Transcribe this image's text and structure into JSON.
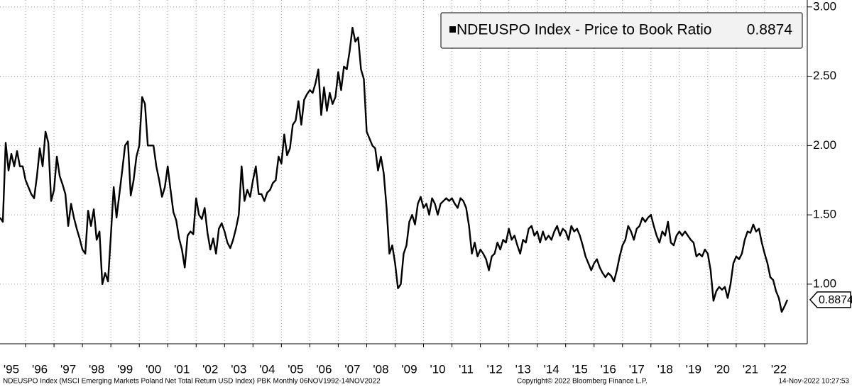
{
  "chart_data": {
    "type": "line",
    "series": [
      {
        "name": "NDEUSPO Index - Price to Book Ratio",
        "color": "#000000",
        "values": [
          1.48,
          1.45,
          2.02,
          1.82,
          1.94,
          1.85,
          1.96,
          1.85,
          1.85,
          1.75,
          1.7,
          1.65,
          1.62,
          1.78,
          1.98,
          1.85,
          2.1,
          2.02,
          1.6,
          1.68,
          1.92,
          1.78,
          1.72,
          1.65,
          1.42,
          1.58,
          1.48,
          1.4,
          1.33,
          1.25,
          1.22,
          1.53,
          1.42,
          1.54,
          1.32,
          1.38,
          1.0,
          1.08,
          1.02,
          1.35,
          1.7,
          1.48,
          1.65,
          1.82,
          2.0,
          2.03,
          1.64,
          1.75,
          1.92,
          2.0,
          2.35,
          2.3,
          2.0,
          2.0,
          2.0,
          1.85,
          1.75,
          1.63,
          1.7,
          1.85,
          1.68,
          1.52,
          1.46,
          1.33,
          1.25,
          1.12,
          1.35,
          1.38,
          1.36,
          1.62,
          1.5,
          1.47,
          1.55,
          1.37,
          1.25,
          1.33,
          1.22,
          1.4,
          1.44,
          1.38,
          1.3,
          1.26,
          1.32,
          1.4,
          1.5,
          1.85,
          1.6,
          1.68,
          1.63,
          1.75,
          1.85,
          1.65,
          1.65,
          1.6,
          1.66,
          1.68,
          1.73,
          1.75,
          1.92,
          1.87,
          2.08,
          1.93,
          1.98,
          2.15,
          2.18,
          2.32,
          2.15,
          2.33,
          2.37,
          2.4,
          2.38,
          2.45,
          2.55,
          2.22,
          2.42,
          2.25,
          2.38,
          2.3,
          2.35,
          2.53,
          2.4,
          2.57,
          2.55,
          2.68,
          2.85,
          2.75,
          2.78,
          2.55,
          2.48,
          2.1,
          2.05,
          2.0,
          1.98,
          1.82,
          1.92,
          1.8,
          1.55,
          1.22,
          1.28,
          1.15,
          0.97,
          1.0,
          1.22,
          1.28,
          1.45,
          1.5,
          1.43,
          1.58,
          1.63,
          1.55,
          1.58,
          1.5,
          1.62,
          1.58,
          1.5,
          1.58,
          1.6,
          1.62,
          1.6,
          1.62,
          1.58,
          1.55,
          1.62,
          1.6,
          1.55,
          1.42,
          1.22,
          1.3,
          1.2,
          1.25,
          1.22,
          1.18,
          1.1,
          1.2,
          1.22,
          1.3,
          1.25,
          1.32,
          1.3,
          1.4,
          1.32,
          1.35,
          1.28,
          1.22,
          1.32,
          1.3,
          1.4,
          1.42,
          1.35,
          1.38,
          1.3,
          1.38,
          1.32,
          1.35,
          1.32,
          1.38,
          1.42,
          1.35,
          1.4,
          1.38,
          1.32,
          1.42,
          1.38,
          1.4,
          1.35,
          1.28,
          1.2,
          1.15,
          1.1,
          1.15,
          1.18,
          1.12,
          1.08,
          1.05,
          1.08,
          1.06,
          1.02,
          1.1,
          1.2,
          1.28,
          1.32,
          1.42,
          1.38,
          1.32,
          1.4,
          1.42,
          1.48,
          1.45,
          1.48,
          1.5,
          1.42,
          1.35,
          1.3,
          1.38,
          1.35,
          1.45,
          1.3,
          1.28,
          1.35,
          1.38,
          1.35,
          1.38,
          1.35,
          1.32,
          1.3,
          1.2,
          1.22,
          1.2,
          1.25,
          1.22,
          1.1,
          0.88,
          0.95,
          0.98,
          0.96,
          0.98,
          0.9,
          1.0,
          1.15,
          1.2,
          1.18,
          1.22,
          1.32,
          1.38,
          1.37,
          1.43,
          1.38,
          1.4,
          1.3,
          1.22,
          1.15,
          1.05,
          1.03,
          0.95,
          0.9,
          0.8,
          0.84,
          0.8874
        ]
      }
    ],
    "x": [
      1995.1,
      1995.2,
      1995.3,
      1995.4,
      1995.5,
      1995.6,
      1995.7,
      1995.8,
      1995.9,
      1996.0,
      1996.1,
      1996.2,
      1996.3,
      1996.4,
      1996.5,
      1996.6,
      1996.7,
      1996.8,
      1996.9,
      1997.0,
      1997.1,
      1997.2,
      1997.3,
      1997.4,
      1997.5,
      1997.6,
      1997.7,
      1997.8,
      1997.9,
      1998.0,
      1998.1,
      1998.2,
      1998.3,
      1998.4,
      1998.5,
      1998.6,
      1998.7,
      1998.8,
      1998.9,
      1999.0,
      1999.1,
      1999.2,
      1999.3,
      1999.4,
      1999.5,
      1999.6,
      1999.7,
      1999.8,
      1999.9,
      2000.0,
      2000.1,
      2000.2,
      2000.3,
      2000.4,
      2000.5,
      2000.6,
      2000.7,
      2000.8,
      2000.9,
      2001.0,
      2001.1,
      2001.2,
      2001.3,
      2001.4,
      2001.5,
      2001.6,
      2001.7,
      2001.8,
      2001.9,
      2002.0,
      2002.1,
      2002.2,
      2002.3,
      2002.4,
      2002.5,
      2002.6,
      2002.7,
      2002.8,
      2002.9,
      2003.0,
      2003.1,
      2003.2,
      2003.3,
      2003.4,
      2003.5,
      2003.6,
      2003.7,
      2003.8,
      2003.9,
      2004.0,
      2004.1,
      2004.2,
      2004.3,
      2004.4,
      2004.5,
      2004.6,
      2004.7,
      2004.8,
      2004.9,
      2005.0,
      2005.1,
      2005.2,
      2005.3,
      2005.4,
      2005.5,
      2005.6,
      2005.7,
      2005.8,
      2005.9,
      2006.0,
      2006.1,
      2006.2,
      2006.3,
      2006.4,
      2006.5,
      2006.6,
      2006.7,
      2006.8,
      2006.9,
      2007.0,
      2007.1,
      2007.2,
      2007.3,
      2007.4,
      2007.5,
      2007.6,
      2007.7,
      2007.8,
      2007.9,
      2008.0,
      2008.1,
      2008.2,
      2008.3,
      2008.4,
      2008.5,
      2008.6,
      2008.7,
      2008.8,
      2008.9,
      2009.0,
      2009.1,
      2009.2,
      2009.3,
      2009.4,
      2009.5,
      2009.6,
      2009.7,
      2009.8,
      2009.9,
      2010.0,
      2010.1,
      2010.2,
      2010.3,
      2010.4,
      2010.5,
      2010.6,
      2010.7,
      2010.8,
      2010.9,
      2011.0,
      2011.1,
      2011.2,
      2011.3,
      2011.4,
      2011.5,
      2011.6,
      2011.7,
      2011.8,
      2011.9,
      2012.0,
      2012.1,
      2012.2,
      2012.3,
      2012.4,
      2012.5,
      2012.6,
      2012.7,
      2012.8,
      2012.9,
      2013.0,
      2013.1,
      2013.2,
      2013.3,
      2013.4,
      2013.5,
      2013.6,
      2013.7,
      2013.8,
      2013.9,
      2014.0,
      2014.1,
      2014.2,
      2014.3,
      2014.4,
      2014.5,
      2014.6,
      2014.7,
      2014.8,
      2014.9,
      2015.0,
      2015.1,
      2015.2,
      2015.3,
      2015.4,
      2015.5,
      2015.6,
      2015.7,
      2015.8,
      2015.9,
      2016.0,
      2016.1,
      2016.2,
      2016.3,
      2016.4,
      2016.5,
      2016.6,
      2016.7,
      2016.8,
      2016.9,
      2017.0,
      2017.1,
      2017.2,
      2017.3,
      2017.4,
      2017.5,
      2017.6,
      2017.7,
      2017.8,
      2017.9,
      2018.0,
      2018.1,
      2018.2,
      2018.3,
      2018.4,
      2018.5,
      2018.6,
      2018.7,
      2018.8,
      2018.9,
      2019.0,
      2019.1,
      2019.2,
      2019.3,
      2019.4,
      2019.5,
      2019.6,
      2019.7,
      2019.8,
      2019.9,
      2020.0,
      2020.1,
      2020.2,
      2020.3,
      2020.4,
      2020.5,
      2020.6,
      2020.7,
      2020.8,
      2020.9,
      2021.0,
      2021.1,
      2021.2,
      2021.3,
      2021.4,
      2021.5,
      2021.6,
      2021.7,
      2021.8,
      2021.9,
      2022.0,
      2022.1,
      2022.2,
      2022.3,
      2022.4,
      2022.5,
      2022.6,
      2022.7,
      2022.8
    ],
    "xlim": [
      1995.1,
      2023.5
    ],
    "xticks": [
      {
        "value": 1995,
        "label": "'95"
      },
      {
        "value": 1996,
        "label": "'96"
      },
      {
        "value": 1997,
        "label": "'97"
      },
      {
        "value": 1998,
        "label": "'98"
      },
      {
        "value": 1999,
        "label": "'99"
      },
      {
        "value": 2000,
        "label": "'00"
      },
      {
        "value": 2001,
        "label": "'01"
      },
      {
        "value": 2002,
        "label": "'02"
      },
      {
        "value": 2003,
        "label": "'03"
      },
      {
        "value": 2004,
        "label": "'04"
      },
      {
        "value": 2005,
        "label": "'05"
      },
      {
        "value": 2006,
        "label": "'06"
      },
      {
        "value": 2007,
        "label": "'07"
      },
      {
        "value": 2008,
        "label": "'08"
      },
      {
        "value": 2009,
        "label": "'09"
      },
      {
        "value": 2010,
        "label": "'10"
      },
      {
        "value": 2011,
        "label": "'11"
      },
      {
        "value": 2012,
        "label": "'12"
      },
      {
        "value": 2013,
        "label": "'13"
      },
      {
        "value": 2014,
        "label": "'14"
      },
      {
        "value": 2015,
        "label": "'15"
      },
      {
        "value": 2016,
        "label": "'16"
      },
      {
        "value": 2017,
        "label": "'17"
      },
      {
        "value": 2018,
        "label": "'18"
      },
      {
        "value": 2019,
        "label": "'19"
      },
      {
        "value": 2020,
        "label": "'20"
      },
      {
        "value": 2021,
        "label": "'21"
      },
      {
        "value": 2022,
        "label": "'22"
      }
    ],
    "ylim": [
      0.57,
      3.05
    ],
    "yticks": [
      {
        "value": 1,
        "label": "1.00"
      },
      {
        "value": 1.5,
        "label": "1.50"
      },
      {
        "value": 2,
        "label": "2.00"
      },
      {
        "value": 2.5,
        "label": "2.50"
      },
      {
        "value": 3,
        "label": "3.00"
      }
    ],
    "grid": true,
    "legend": "top-right",
    "source": "NDEUSPO Index (MSCI Emerging Markets Poland Net Total Return USD Index) PBK  Monthly 06NOV1992-14NOV2022",
    "copyright": "Copyright© 2022 Bloomberg Finance L.P.",
    "timestamp": "14-Nov-2022 10:27:53"
  }
}
